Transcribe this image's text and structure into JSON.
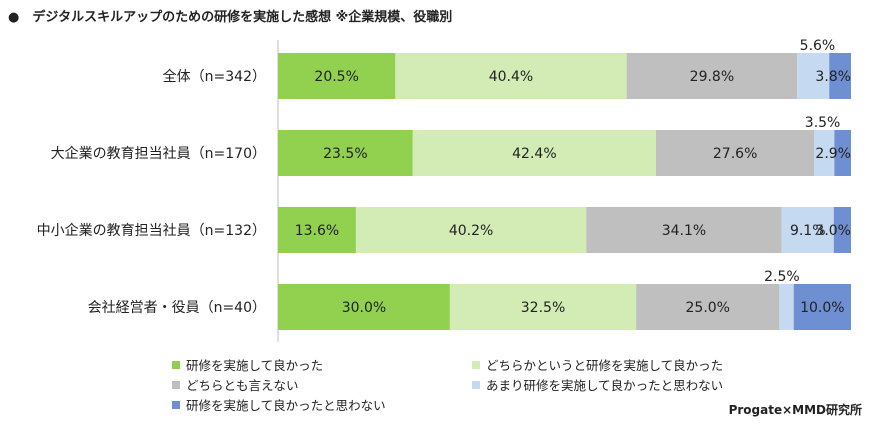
{
  "title": "●　デジタルスキルアップのための研修を実施した感想 ※企業規模、役職別",
  "credit": "Progate×MMD研究所",
  "chart_data": {
    "type": "bar",
    "orientation": "horizontal-stacked-100",
    "categories": [
      "全体（n=342）",
      "大企業の教育担当社員（n=170）",
      "中小企業の教育担当社員（n=132）",
      "会社経営者・役員（n=40）"
    ],
    "series": [
      {
        "name": "研修を実施して良かった",
        "color": "#92d050",
        "values": [
          20.5,
          23.5,
          13.6,
          30.0
        ],
        "labels": [
          "20.5%",
          "23.5%",
          "13.6%",
          "30.0%"
        ]
      },
      {
        "name": "どちらかというと研修を実施して良かった",
        "color": "#d3ecb5",
        "values": [
          40.4,
          42.4,
          40.2,
          32.5
        ],
        "labels": [
          "40.4%",
          "42.4%",
          "40.2%",
          "32.5%"
        ]
      },
      {
        "name": "どちらとも言えない",
        "color": "#bfbfbf",
        "values": [
          29.8,
          27.6,
          34.1,
          25.0
        ],
        "labels": [
          "29.8%",
          "27.6%",
          "34.1%",
          "25.0%"
        ]
      },
      {
        "name": "あまり研修を実施して良かったと思わない",
        "color": "#c5d9f1",
        "values": [
          5.6,
          3.5,
          9.1,
          2.5
        ],
        "labels": [
          "5.6%",
          "3.5%",
          "9.1%",
          "2.5%"
        ]
      },
      {
        "name": "研修を実施して良かったと思わない",
        "color": "#6f8fd3",
        "values": [
          3.8,
          2.9,
          3.0,
          10.0
        ],
        "labels": [
          "3.8%",
          "2.9%",
          "3.0%",
          "10.0%"
        ]
      }
    ],
    "xlim": [
      0,
      100
    ]
  }
}
